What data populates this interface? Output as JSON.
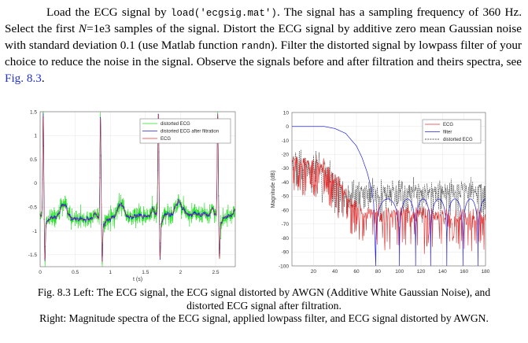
{
  "paragraph": {
    "t1": "Load the ECG signal by ",
    "code1": "load('ecgsig.mat')",
    "t2": ". The signal has a sampling frequency of 360 Hz. Select the first ",
    "n_var": "N",
    "t3": "=1e3 samples of the signal. Distort the ECG signal by additive zero mean Gaussian noise with standard deviation 0.1 (use Matlab function ",
    "code2": "randn",
    "t4": "). Filter the distorted signal by lowpass filter of your choice to reduce the noise in the signal. Observe the signals before and after filtration and theirs spectra, see ",
    "fig_link": "Fig. 8.3",
    "t5": "."
  },
  "caption": {
    "line1": "Fig. 8.3 Left: The ECG signal, the ECG signal distorted by AWGN (Additive White Gaussian Noise), and",
    "line2": "distorted ECG signal after filtration.",
    "line3": "Right: Magnitude spectra of the ECG signal, applied lowpass filter, and ECG signal distorted by AWGN."
  },
  "colors": {
    "link": "#2233cc",
    "green": "#22e022",
    "blue": "#2020e0",
    "red": "#e03030",
    "black": "#222222"
  },
  "chart_data": [
    {
      "type": "line",
      "xlabel": "t (s)",
      "ylabel": "",
      "xlim": [
        0,
        2.78
      ],
      "ylim": [
        -1.75,
        1.5
      ],
      "xticks": [
        0,
        0.5,
        1,
        1.5,
        2,
        2.5
      ],
      "xtick_labels": [
        "0",
        "0.5",
        "1",
        "1.5",
        "2",
        "2.5"
      ],
      "yticks": [
        -1.5,
        -1,
        -0.5,
        0,
        0.5,
        1,
        1.5
      ],
      "ytick_labels": [
        "-1.5",
        "-1",
        "-0.5",
        "0",
        "0.5",
        "1",
        "1.5"
      ],
      "grid": true,
      "legend_position": "top-right",
      "sampling_frequency_hz": 360,
      "samples": 1000,
      "noise_std": 0.1,
      "r_peak_times_s": [
        0.044,
        0.86,
        1.685,
        2.53
      ],
      "r_peak_value": 1.45,
      "s_trough_value": -1.7,
      "baseline_value": -0.7,
      "series": [
        {
          "name": "distorted ECG",
          "color": "#22e022"
        },
        {
          "name": "distorted ECG after filtration",
          "color": "#2020e0"
        },
        {
          "name": "ECG",
          "color": "#e03030"
        }
      ]
    },
    {
      "type": "line",
      "xlabel": "",
      "ylabel": "Magnitude (dB)",
      "xlim": [
        0,
        180
      ],
      "ylim": [
        -100,
        10
      ],
      "xticks": [
        20,
        40,
        60,
        80,
        100,
        120,
        140,
        160,
        180
      ],
      "xtick_labels": [
        "20",
        "40",
        "60",
        "80",
        "100",
        "120",
        "140",
        "160",
        "180"
      ],
      "yticks": [
        10,
        0,
        -10,
        -20,
        -30,
        -40,
        -50,
        -60,
        -70,
        -80,
        -90,
        -100
      ],
      "ytick_labels": [
        "10",
        "0",
        "-10",
        "-20",
        "-30",
        "-40",
        "-50",
        "-60",
        "-70",
        "-80",
        "-90",
        "-100"
      ],
      "grid": true,
      "legend_position": "top-right",
      "filter_response": {
        "passband_points": [
          [
            0,
            0
          ],
          [
            30,
            0
          ],
          [
            40,
            -1.5
          ],
          [
            50,
            -5
          ],
          [
            60,
            -14
          ],
          [
            65,
            -22
          ],
          [
            70,
            -33
          ],
          [
            74,
            -45
          ],
          [
            76,
            -55
          ],
          [
            78,
            -100
          ]
        ],
        "null_frequencies": [
          78,
          100,
          115,
          129,
          144,
          159,
          173
        ],
        "sidelobe_level_db": -52
      },
      "ecg_spectrum_envelope": [
        [
          0,
          -25
        ],
        [
          10,
          -27
        ],
        [
          30,
          -28
        ],
        [
          45,
          -42
        ],
        [
          55,
          -55
        ],
        [
          70,
          -62
        ],
        [
          180,
          -64
        ]
      ],
      "distorted_noise_floor_db": -45,
      "series": [
        {
          "name": "ECG",
          "color": "#e03030",
          "style": "solid"
        },
        {
          "name": "filter",
          "color": "#2020e0",
          "style": "solid"
        },
        {
          "name": "distorted ECG",
          "color": "#222222",
          "style": "dashed"
        }
      ]
    }
  ]
}
